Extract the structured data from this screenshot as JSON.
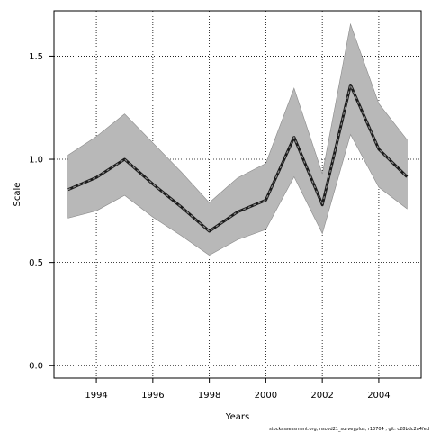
{
  "chart_data": {
    "type": "line",
    "title": "",
    "xlabel": "Years",
    "ylabel": "Scale",
    "x": [
      1993,
      1994,
      1995,
      1996,
      1997,
      1998,
      1999,
      2000,
      2001,
      2002,
      2003,
      2004,
      2005
    ],
    "series": [
      {
        "values": [
          0.853,
          0.912,
          1.0,
          0.88,
          0.77,
          0.651,
          0.745,
          0.802,
          1.107,
          0.779,
          1.36,
          1.049,
          0.915
        ]
      }
    ],
    "band": {
      "upper": [
        1.02,
        1.11,
        1.22,
        1.08,
        0.94,
        0.79,
        0.91,
        0.98,
        1.345,
        0.93,
        1.655,
        1.27,
        1.095
      ],
      "lower": [
        0.715,
        0.75,
        0.825,
        0.72,
        0.63,
        0.535,
        0.61,
        0.66,
        0.915,
        0.64,
        1.12,
        0.865,
        0.76
      ]
    },
    "xlim": [
      1992.5,
      2005.5
    ],
    "ylim": [
      -0.06,
      1.72
    ],
    "xticks": [
      1994,
      1996,
      1998,
      2000,
      2002,
      2004
    ],
    "yticks": [
      0.0,
      0.5,
      1.0,
      1.5
    ],
    "ytick_labels": [
      "0.0",
      "0.5",
      "1.0",
      "1.5"
    ],
    "grid": true,
    "colors": {
      "band": "#b8b8b8",
      "band_edge": "#8a8a8a",
      "line": "#1a1a1a",
      "dash": "#8c8c8c"
    }
  },
  "footer": "stockassessment.org, nscod21_surveyplus, r13704 , git: c28bdc2a4fed"
}
